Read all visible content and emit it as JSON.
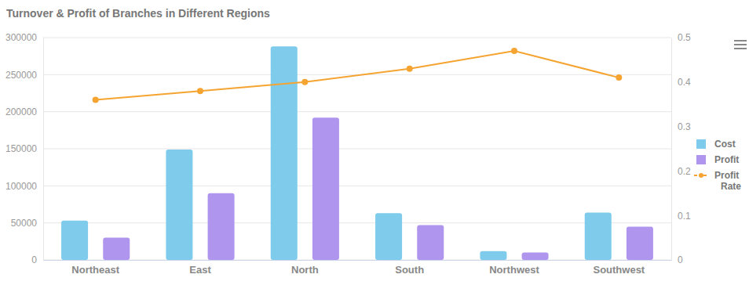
{
  "chart_data": {
    "type": "bar",
    "title": "Turnover & Profit of Branches in Different Regions",
    "categories": [
      "Northeast",
      "East",
      "North",
      "South",
      "Northwest",
      "Southwest"
    ],
    "series": [
      {
        "name": "Cost",
        "type": "bar",
        "color": "#7ecbeb",
        "values": [
          53000,
          149000,
          288000,
          63000,
          12000,
          64000
        ]
      },
      {
        "name": "Profit",
        "type": "bar",
        "color": "#b095ee",
        "values": [
          30000,
          90000,
          192000,
          47000,
          10000,
          45000
        ]
      },
      {
        "name": "Profit Rate",
        "type": "line",
        "axis": "y2",
        "color": "#f5a431",
        "marker": "circle",
        "values": [
          0.36,
          0.38,
          0.4,
          0.43,
          0.47,
          0.41
        ]
      }
    ],
    "ylim": [
      0,
      300000
    ],
    "yticks": [
      0,
      50000,
      100000,
      150000,
      200000,
      250000,
      300000
    ],
    "y2lim": [
      0,
      0.5
    ],
    "y2ticks": [
      0,
      0.1,
      0.2,
      0.3,
      0.4,
      0.5
    ],
    "grid": true,
    "legend": "right"
  }
}
